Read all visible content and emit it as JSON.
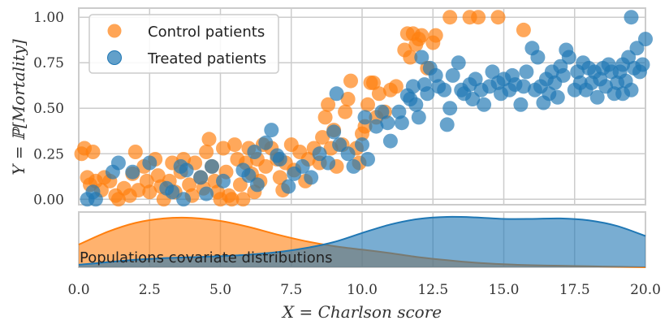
{
  "chart_data": [
    {
      "type": "scatter",
      "title": "",
      "xlabel": "",
      "ylabel": "Y = ℙ[Mortality]",
      "xlim": [
        0,
        20
      ],
      "ylim": [
        -0.03,
        1.05
      ],
      "yticks": [
        0.0,
        0.25,
        0.5,
        0.75,
        1.0
      ],
      "ytick_labels": [
        "0.00",
        "0.25",
        "0.50",
        "0.75",
        "1.00"
      ],
      "grid": true,
      "legend_position": "top-left",
      "series": [
        {
          "name": "Control patients",
          "color": "#ff7f0e",
          "points": [
            [
              0.1,
              0.25
            ],
            [
              0.2,
              0.28
            ],
            [
              0.5,
              0.26
            ],
            [
              0.3,
              0.12
            ],
            [
              0.4,
              0.08
            ],
            [
              0.6,
              0.1
            ],
            [
              0.8,
              0.05
            ],
            [
              0.9,
              0.12
            ],
            [
              1.1,
              0.1
            ],
            [
              1.3,
              0.02
            ],
            [
              1.4,
              0.0
            ],
            [
              1.6,
              0.06
            ],
            [
              1.8,
              0.02
            ],
            [
              1.9,
              0.14
            ],
            [
              2.0,
              0.26
            ],
            [
              2.1,
              0.05
            ],
            [
              2.3,
              0.18
            ],
            [
              2.4,
              0.1
            ],
            [
              2.5,
              0.04
            ],
            [
              2.7,
              0.22
            ],
            [
              2.8,
              0.13
            ],
            [
              2.9,
              0.07
            ],
            [
              3.0,
              0.0
            ],
            [
              3.2,
              0.1
            ],
            [
              3.3,
              0.2
            ],
            [
              3.4,
              0.04
            ],
            [
              3.6,
              0.15
            ],
            [
              3.7,
              0.22
            ],
            [
              3.9,
              0.08
            ],
            [
              4.0,
              0.02
            ],
            [
              4.1,
              0.2
            ],
            [
              4.3,
              0.12
            ],
            [
              4.4,
              0.06
            ],
            [
              4.5,
              0.26
            ],
            [
              4.6,
              0.33
            ],
            [
              4.7,
              0.18
            ],
            [
              4.8,
              0.1
            ],
            [
              4.9,
              0.04
            ],
            [
              5.0,
              0.0
            ],
            [
              5.1,
              0.28
            ],
            [
              5.2,
              0.15
            ],
            [
              5.3,
              0.02
            ],
            [
              5.4,
              0.0
            ],
            [
              5.5,
              0.3
            ],
            [
              5.6,
              0.22
            ],
            [
              5.7,
              0.08
            ],
            [
              5.8,
              0.0
            ],
            [
              5.9,
              0.2
            ],
            [
              6.0,
              0.28
            ],
            [
              6.1,
              0.14
            ],
            [
              6.2,
              0.04
            ],
            [
              6.3,
              0.22
            ],
            [
              6.4,
              0.1
            ],
            [
              6.5,
              0.3
            ],
            [
              6.6,
              0.18
            ],
            [
              6.8,
              0.28
            ],
            [
              7.0,
              0.22
            ],
            [
              7.1,
              0.12
            ],
            [
              7.2,
              0.05
            ],
            [
              7.3,
              0.2
            ],
            [
              7.5,
              0.3
            ],
            [
              7.6,
              0.16
            ],
            [
              7.8,
              0.26
            ],
            [
              8.0,
              0.1
            ],
            [
              8.1,
              0.22
            ],
            [
              8.3,
              0.28
            ],
            [
              8.5,
              0.2
            ],
            [
              8.6,
              0.34
            ],
            [
              8.7,
              0.45
            ],
            [
              8.8,
              0.52
            ],
            [
              8.9,
              0.28
            ],
            [
              9.0,
              0.38
            ],
            [
              9.1,
              0.18
            ],
            [
              9.3,
              0.3
            ],
            [
              9.4,
              0.48
            ],
            [
              9.5,
              0.55
            ],
            [
              9.6,
              0.65
            ],
            [
              9.8,
              0.28
            ],
            [
              9.9,
              0.2
            ],
            [
              10.0,
              0.36
            ],
            [
              10.1,
              0.4
            ],
            [
              10.2,
              0.52
            ],
            [
              10.3,
              0.64
            ],
            [
              10.4,
              0.64
            ],
            [
              10.5,
              0.45
            ],
            [
              10.6,
              0.58
            ],
            [
              10.8,
              0.48
            ],
            [
              11.0,
              0.6
            ],
            [
              11.2,
              0.62
            ],
            [
              11.5,
              0.82
            ],
            [
              11.6,
              0.91
            ],
            [
              11.7,
              0.78
            ],
            [
              11.8,
              0.91
            ],
            [
              11.9,
              0.85
            ],
            [
              12.0,
              0.88
            ],
            [
              12.1,
              0.9
            ],
            [
              12.3,
              0.72
            ],
            [
              12.5,
              0.86
            ],
            [
              12.6,
              0.9
            ],
            [
              13.1,
              1.0
            ],
            [
              13.8,
              1.0
            ],
            [
              14.1,
              1.0
            ],
            [
              14.8,
              1.0
            ],
            [
              15.7,
              0.93
            ]
          ]
        },
        {
          "name": "Treated patients",
          "color": "#1f77b4",
          "points": [
            [
              0.3,
              0.0
            ],
            [
              0.5,
              0.04
            ],
            [
              0.6,
              0.0
            ],
            [
              1.2,
              0.15
            ],
            [
              1.4,
              0.2
            ],
            [
              1.9,
              0.15
            ],
            [
              2.5,
              0.2
            ],
            [
              3.1,
              0.06
            ],
            [
              3.3,
              0.04
            ],
            [
              3.6,
              0.18
            ],
            [
              3.7,
              0.0
            ],
            [
              3.8,
              0.16
            ],
            [
              4.3,
              0.12
            ],
            [
              4.5,
              0.03
            ],
            [
              4.7,
              0.18
            ],
            [
              5.1,
              0.1
            ],
            [
              5.8,
              0.16
            ],
            [
              6.0,
              0.13
            ],
            [
              6.2,
              0.26
            ],
            [
              6.3,
              0.08
            ],
            [
              6.6,
              0.31
            ],
            [
              6.8,
              0.38
            ],
            [
              7.0,
              0.24
            ],
            [
              7.1,
              0.22
            ],
            [
              7.4,
              0.07
            ],
            [
              7.6,
              0.14
            ],
            [
              7.9,
              0.18
            ],
            [
              8.2,
              0.12
            ],
            [
              8.5,
              0.25
            ],
            [
              8.8,
              0.2
            ],
            [
              9.0,
              0.37
            ],
            [
              9.1,
              0.58
            ],
            [
              9.2,
              0.3
            ],
            [
              9.5,
              0.25
            ],
            [
              9.7,
              0.18
            ],
            [
              10.0,
              0.3
            ],
            [
              10.1,
              0.45
            ],
            [
              10.2,
              0.22
            ],
            [
              10.5,
              0.4
            ],
            [
              10.7,
              0.48
            ],
            [
              10.9,
              0.42
            ],
            [
              11.0,
              0.32
            ],
            [
              11.3,
              0.48
            ],
            [
              11.4,
              0.42
            ],
            [
              11.6,
              0.57
            ],
            [
              11.7,
              0.55
            ],
            [
              11.8,
              0.62
            ],
            [
              11.9,
              0.52
            ],
            [
              12.0,
              0.45
            ],
            [
              12.1,
              0.78
            ],
            [
              12.2,
              0.63
            ],
            [
              12.3,
              0.58
            ],
            [
              12.4,
              0.72
            ],
            [
              12.6,
              0.68
            ],
            [
              12.7,
              0.62
            ],
            [
              12.9,
              0.6
            ],
            [
              13.0,
              0.41
            ],
            [
              13.1,
              0.5
            ],
            [
              13.2,
              0.68
            ],
            [
              13.4,
              0.75
            ],
            [
              13.5,
              0.6
            ],
            [
              13.6,
              0.58
            ],
            [
              13.8,
              0.63
            ],
            [
              13.9,
              0.55
            ],
            [
              14.0,
              0.66
            ],
            [
              14.2,
              0.6
            ],
            [
              14.3,
              0.52
            ],
            [
              14.5,
              0.62
            ],
            [
              14.6,
              0.7
            ],
            [
              14.8,
              0.64
            ],
            [
              14.9,
              0.58
            ],
            [
              15.0,
              0.66
            ],
            [
              15.2,
              0.6
            ],
            [
              15.3,
              0.68
            ],
            [
              15.4,
              0.63
            ],
            [
              15.6,
              0.52
            ],
            [
              15.7,
              0.62
            ],
            [
              15.8,
              0.7
            ],
            [
              16.0,
              0.83
            ],
            [
              16.1,
              0.6
            ],
            [
              16.2,
              0.78
            ],
            [
              16.3,
              0.62
            ],
            [
              16.4,
              0.53
            ],
            [
              16.5,
              0.66
            ],
            [
              16.6,
              0.58
            ],
            [
              16.7,
              0.7
            ],
            [
              16.8,
              0.64
            ],
            [
              16.9,
              0.56
            ],
            [
              17.0,
              0.73
            ],
            [
              17.1,
              0.68
            ],
            [
              17.2,
              0.82
            ],
            [
              17.3,
              0.78
            ],
            [
              17.5,
              0.6
            ],
            [
              17.6,
              0.7
            ],
            [
              17.7,
              0.64
            ],
            [
              17.8,
              0.75
            ],
            [
              17.9,
              0.6
            ],
            [
              18.0,
              0.72
            ],
            [
              18.1,
              0.64
            ],
            [
              18.2,
              0.7
            ],
            [
              18.4,
              0.66
            ],
            [
              18.5,
              0.72
            ],
            [
              18.6,
              0.62
            ],
            [
              18.7,
              0.74
            ],
            [
              18.8,
              0.7
            ],
            [
              18.9,
              0.58
            ],
            [
              19.0,
              0.64
            ],
            [
              19.1,
              0.7
            ],
            [
              19.2,
              0.74
            ],
            [
              19.3,
              0.65
            ],
            [
              19.4,
              0.78
            ],
            [
              19.5,
              0.6
            ],
            [
              19.6,
              0.72
            ],
            [
              19.7,
              0.83
            ],
            [
              19.8,
              0.7
            ],
            [
              19.9,
              0.74
            ],
            [
              20.0,
              0.88
            ],
            [
              19.5,
              1.0
            ],
            [
              19.2,
              0.58
            ],
            [
              18.3,
              0.56
            ]
          ]
        }
      ]
    },
    {
      "type": "area",
      "title": "",
      "xlabel": "X = Charlson score",
      "xlim": [
        0,
        20
      ],
      "xticks": [
        0.0,
        2.5,
        5.0,
        7.5,
        10.0,
        12.5,
        15.0,
        17.5,
        20.0
      ],
      "xtick_labels": [
        "0.0",
        "2.5",
        "5.0",
        "7.5",
        "10.0",
        "12.5",
        "15.0",
        "17.5",
        "20.0"
      ],
      "annotation": "Populations covariate distributions",
      "grid": true,
      "series": [
        {
          "name": "Control patients",
          "color": "#ff7f0e",
          "x": [
            0,
            1,
            2,
            3,
            4,
            5,
            6,
            7,
            8,
            9,
            10,
            11,
            12,
            13,
            14,
            15,
            16,
            17,
            18,
            19,
            20
          ],
          "density": [
            0.45,
            0.7,
            0.88,
            0.97,
            0.98,
            0.92,
            0.8,
            0.65,
            0.52,
            0.42,
            0.35,
            0.28,
            0.2,
            0.14,
            0.09,
            0.06,
            0.04,
            0.03,
            0.02,
            0.01,
            0.0
          ]
        },
        {
          "name": "Treated patients",
          "color": "#1f77b4",
          "x": [
            0,
            1,
            2,
            3,
            4,
            5,
            6,
            7,
            8,
            9,
            10,
            11,
            12,
            13,
            14,
            15,
            16,
            17,
            18,
            19,
            20
          ],
          "density": [
            0.05,
            0.1,
            0.15,
            0.18,
            0.2,
            0.22,
            0.25,
            0.3,
            0.38,
            0.5,
            0.68,
            0.85,
            0.96,
            1.0,
            0.99,
            0.96,
            0.96,
            0.97,
            0.93,
            0.82,
            0.62
          ]
        }
      ]
    }
  ]
}
